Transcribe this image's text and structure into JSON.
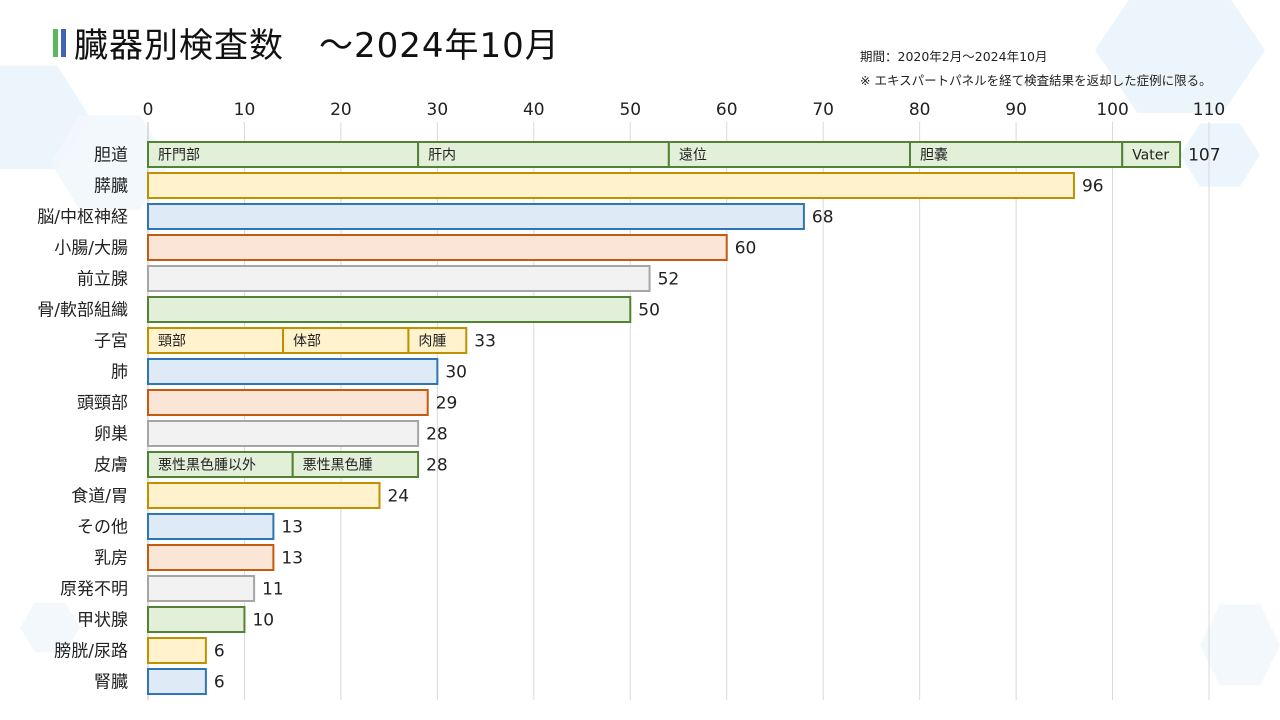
{
  "title": "臓器別検査数　～2024年10月",
  "period": "期間：2020年2月～2024年10月",
  "note": "※ エキスパートパネルを経て検査結果を返却した症例に限る。",
  "title_marks": [
    "#5cb85c",
    "#3f63b5"
  ],
  "colors": {
    "green": {
      "fill": "#e2efd9",
      "stroke": "#548235"
    },
    "yellow": {
      "fill": "#fff2cc",
      "stroke": "#bf9000"
    },
    "blue": {
      "fill": "#deebf7",
      "stroke": "#2e75b6"
    },
    "orange": {
      "fill": "#fbe5d6",
      "stroke": "#c55a11"
    },
    "gray": {
      "fill": "#f2f2f2",
      "stroke": "#a6a6a6"
    }
  },
  "chart_data": {
    "type": "bar",
    "orientation": "horizontal",
    "xlim": [
      0,
      110
    ],
    "ticks": [
      0,
      10,
      20,
      30,
      40,
      50,
      60,
      70,
      80,
      90,
      100,
      110
    ],
    "grid": true,
    "categories": [
      "胆道",
      "膵臓",
      "脳/中枢神経",
      "小腸/大腸",
      "前立腺",
      "骨/軟部組織",
      "子宮",
      "肺",
      "頭頸部",
      "卵巣",
      "皮膚",
      "食道/胃",
      "その他",
      "乳房",
      "原発不明",
      "甲状腺",
      "膀胱/尿路",
      "腎臓"
    ],
    "values": [
      107,
      96,
      68,
      60,
      52,
      50,
      33,
      30,
      29,
      28,
      28,
      24,
      13,
      13,
      11,
      10,
      6,
      6
    ],
    "bar_colors": [
      "green",
      "yellow",
      "blue",
      "orange",
      "gray",
      "green",
      "yellow",
      "blue",
      "orange",
      "gray",
      "green",
      "yellow",
      "blue",
      "orange",
      "gray",
      "green",
      "yellow",
      "blue"
    ],
    "segments": {
      "胆道": [
        {
          "label": "肝門部",
          "value": 28
        },
        {
          "label": "肝内",
          "value": 26
        },
        {
          "label": "遠位",
          "value": 25
        },
        {
          "label": "胆嚢",
          "value": 22
        },
        {
          "label": "Vater",
          "value": 6
        }
      ],
      "子宮": [
        {
          "label": "頸部",
          "value": 14
        },
        {
          "label": "体部",
          "value": 13
        },
        {
          "label": "肉腫",
          "value": 6
        }
      ],
      "皮膚": [
        {
          "label": "悪性黒色腫以外",
          "value": 15
        },
        {
          "label": "悪性黒色腫",
          "value": 13
        }
      ]
    }
  }
}
